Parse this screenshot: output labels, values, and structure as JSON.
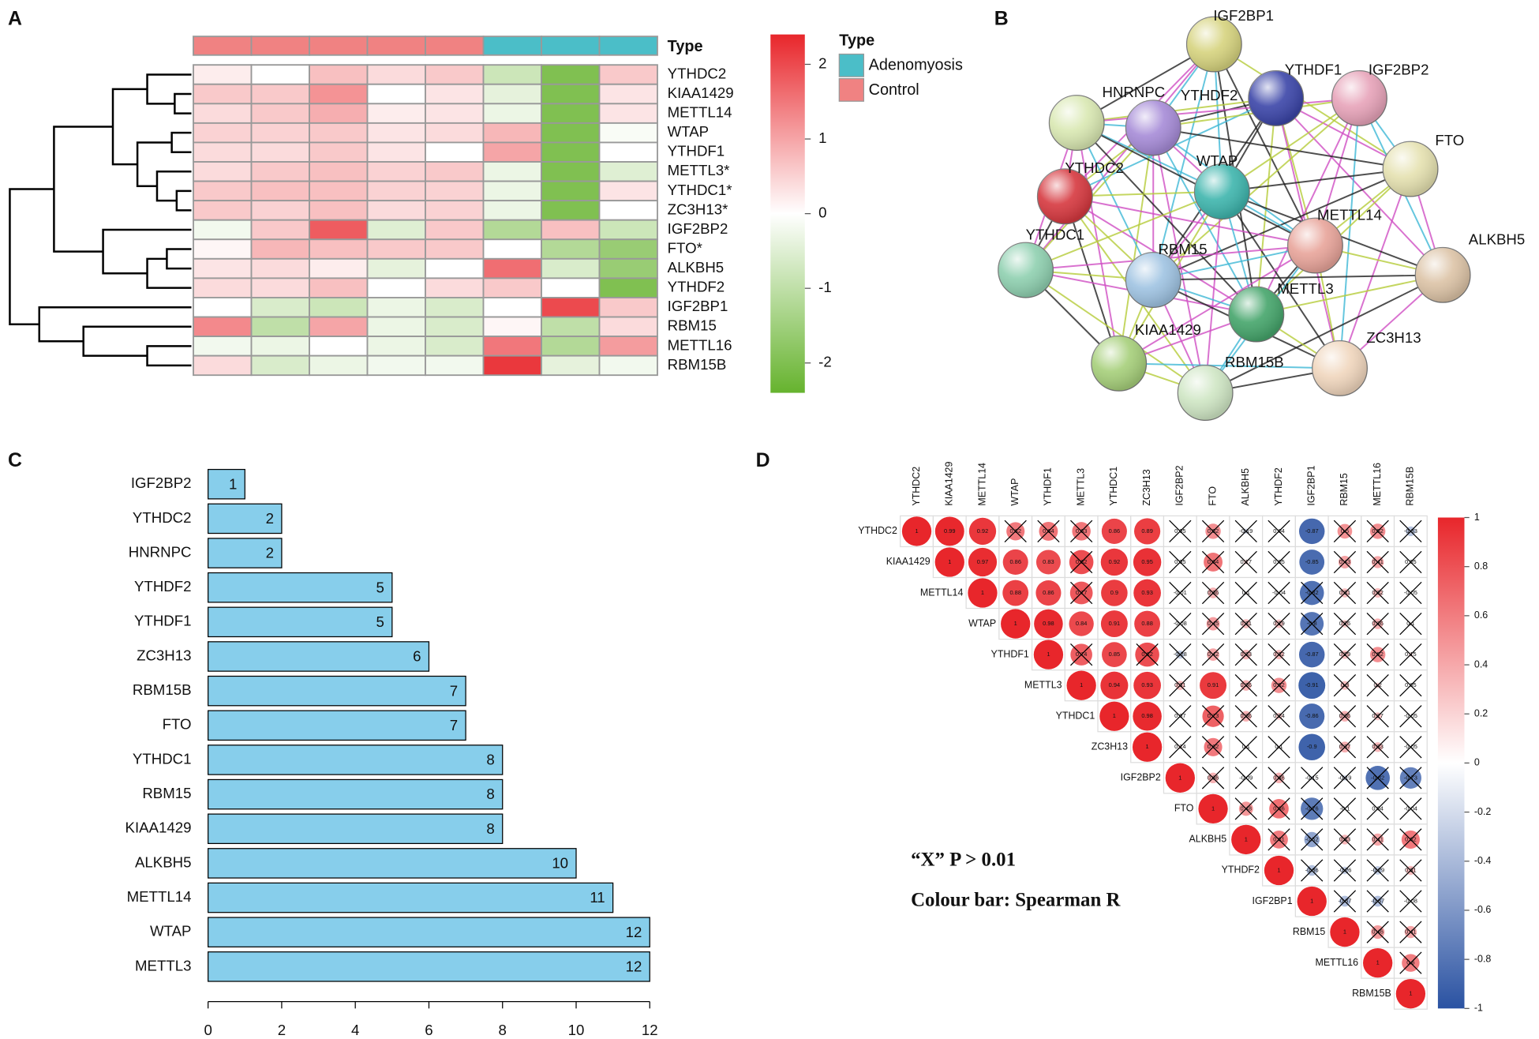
{
  "chart_data": [
    {
      "type": "heatmap",
      "label": "A",
      "annotation_title": "Type",
      "legend_title": "Type",
      "legend": [
        {
          "name": "Adenomyosis",
          "color": "#4bbec8"
        },
        {
          "name": "Control",
          "color": "#f08282"
        }
      ],
      "column_types": [
        "Control",
        "Control",
        "Control",
        "Control",
        "Control",
        "Adenomyosis",
        "Adenomyosis",
        "Adenomyosis"
      ],
      "rows": [
        "YTHDC2",
        "KIAA1429",
        "METTL14",
        "WTAP",
        "YTHDF1",
        "METTL3*",
        "YTHDC1*",
        "ZC3H13*",
        "IGF2BP2",
        "FTO*",
        "ALKBH5",
        "YTHDF2",
        "IGF2BP1",
        "RBM15",
        "METTL16",
        "RBM15B"
      ],
      "values": [
        [
          0.2,
          0,
          0.7,
          0.4,
          0.6,
          -0.8,
          -2,
          0.6
        ],
        [
          0.6,
          0.6,
          1.2,
          0,
          0.3,
          -0.4,
          -2,
          0.3
        ],
        [
          0.4,
          0.6,
          0.9,
          0.2,
          0.3,
          -0.3,
          -2,
          0.3
        ],
        [
          0.5,
          0.5,
          0.6,
          0.3,
          0.4,
          0.8,
          -2,
          -0.1
        ],
        [
          0.4,
          0.4,
          0.6,
          0.3,
          0,
          1,
          -2,
          0
        ],
        [
          0.4,
          0.6,
          0.7,
          0.5,
          0.6,
          -0.3,
          -2,
          -0.5
        ],
        [
          0.6,
          0.7,
          0.7,
          0.5,
          0.5,
          -0.3,
          -2,
          0.3
        ],
        [
          0.6,
          0.5,
          0.7,
          0.4,
          0.5,
          -0.3,
          -2,
          0
        ],
        [
          -0.2,
          0.6,
          1.8,
          -0.5,
          0.6,
          -1.2,
          0.7,
          -0.8
        ],
        [
          0.1,
          0.8,
          0.7,
          0.6,
          0.6,
          0,
          -1.2,
          -1.6
        ],
        [
          0.3,
          0.4,
          0.2,
          -0.4,
          0,
          1.6,
          -0.6,
          -1.6
        ],
        [
          0.4,
          0.4,
          0.7,
          0,
          0.4,
          0.6,
          0,
          -2
        ],
        [
          0,
          -0.6,
          -0.8,
          -0.3,
          -0.6,
          0,
          2,
          0.6
        ],
        [
          1.3,
          -1,
          1,
          -0.3,
          -0.6,
          0.1,
          -1,
          0.4
        ],
        [
          -0.2,
          -0.3,
          0,
          -0.3,
          -0.6,
          1.5,
          -1.2,
          1.1
        ],
        [
          0.4,
          -0.6,
          -0.3,
          -0.2,
          -0.2,
          2.2,
          -0.4,
          -0.2
        ]
      ],
      "zlim": [
        -2.4,
        2.4
      ],
      "zticks": [
        -2,
        -1,
        0,
        1,
        2
      ],
      "colors": [
        "#66b32e",
        "#ffffff",
        "#e8262b"
      ]
    },
    {
      "type": "network",
      "label": "B",
      "nodes": [
        "IGF2BP1",
        "YTHDF1",
        "IGF2BP2",
        "HNRNPC",
        "YTHDF2",
        "FTO",
        "YTHDC2",
        "WTAP",
        "METTL14",
        "ALKBH5",
        "YTHDC1",
        "RBM15",
        "METTL3",
        "ZC3H13",
        "KIAA1429",
        "RBM15B"
      ]
    },
    {
      "type": "hbar",
      "label": "C",
      "categories": [
        "IGF2BP2",
        "YTHDC2",
        "HNRNPC",
        "YTHDF2",
        "YTHDF1",
        "ZC3H13",
        "RBM15B",
        "FTO",
        "YTHDC1",
        "RBM15",
        "KIAA1429",
        "ALKBH5",
        "METTL14",
        "WTAP",
        "METTL3"
      ],
      "values": [
        1,
        2,
        2,
        5,
        5,
        6,
        7,
        7,
        8,
        8,
        8,
        10,
        11,
        12,
        12
      ],
      "color": "#87ceeb",
      "xlim": [
        0,
        12
      ],
      "xticks": [
        0,
        2,
        4,
        6,
        8,
        10,
        12
      ]
    },
    {
      "type": "correlation",
      "label": "D",
      "genes": [
        "YTHDC2",
        "KIAA1429",
        "METTL14",
        "WTAP",
        "YTHDF1",
        "METTL3",
        "YTHDC1",
        "ZC3H13",
        "IGF2BP2",
        "FTO",
        "ALKBH5",
        "YTHDF2",
        "IGF2BP1",
        "RBM15",
        "METTL16",
        "RBM15B"
      ],
      "values": [
        [
          1,
          0.99,
          0.92,
          0.62,
          0.64,
          0.63,
          0.86,
          0.89,
          0.05,
          0.52,
          -0.19,
          0.04,
          -0.87,
          0.5,
          0.52,
          -0.33
        ],
        [
          1,
          0.97,
          0.86,
          0.83,
          0.82,
          0.92,
          0.95,
          0.05,
          0.64,
          0.17,
          0.05,
          -0.85,
          0.43,
          0.41,
          0.05
        ],
        [
          1,
          0.88,
          0.86,
          0.77,
          0.9,
          0.93,
          -0.01,
          0.36,
          0.1,
          -0.04,
          -0.82,
          0.31,
          0.32,
          -0.05
        ],
        [
          1,
          0.98,
          0.84,
          0.91,
          0.88,
          -0.08,
          0.45,
          0.31,
          0.29,
          -0.8,
          0.26,
          0.36,
          0.1
        ],
        [
          1,
          0.74,
          0.85,
          0.82,
          -0.28,
          0.42,
          0.33,
          0.32,
          -0.87,
          0.29,
          0.52,
          0.15
        ],
        [
          1,
          0.94,
          0.93,
          0.31,
          0.91,
          0.36,
          0.52,
          -0.91,
          0.3,
          0.2,
          0.05
        ],
        [
          1,
          0.98,
          0.07,
          0.73,
          0.36,
          0.24,
          -0.86,
          0.36,
          0.27,
          -0.05
        ],
        [
          1,
          0.14,
          0.62,
          0.1,
          0.1,
          -0.9,
          0.37,
          0.33,
          -0.05
        ],
        [
          1,
          0.36,
          -0.09,
          0.36,
          -0.15,
          -0.19,
          -0.82,
          -0.73
        ],
        [
          1,
          0.48,
          0.66,
          -0.76,
          -0.1,
          0.04,
          -0.04
        ],
        [
          1,
          0.61,
          -0.52,
          0.33,
          0.41,
          0.62
        ],
        [
          1,
          -0.36,
          -0.26,
          -0.29,
          0.31
        ],
        [
          1,
          -0.37,
          -0.37,
          -0.08
        ],
        [
          1,
          0.46,
          0.41
        ],
        [
          1,
          0.6
        ],
        [
          1
        ]
      ],
      "zlim": [
        -1,
        1
      ],
      "zticks": [
        -1,
        -0.8,
        -0.6,
        -0.4,
        -0.2,
        0,
        0.2,
        0.4,
        0.6,
        0.8,
        1
      ],
      "colors": [
        "#2a52a2",
        "#ffffff",
        "#e8262b"
      ],
      "notes": [
        "“X” P > 0.01",
        "Colour bar: Spearman R"
      ]
    }
  ]
}
